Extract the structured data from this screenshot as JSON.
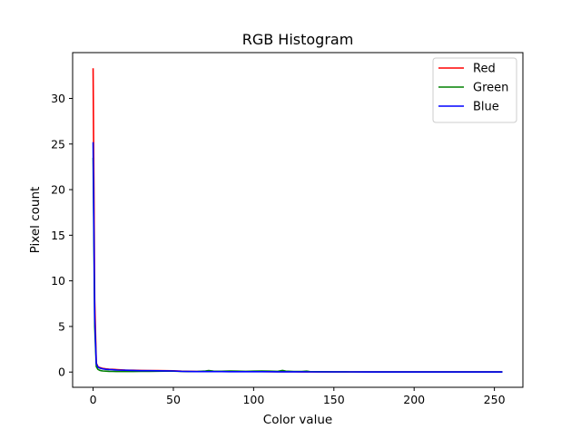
{
  "chart_data": {
    "type": "line",
    "title": "RGB Histogram",
    "xlabel": "Color value",
    "ylabel": "Pixel count",
    "xlim": [
      -12.75,
      267.75
    ],
    "ylim": [
      -1.67,
      35.02
    ],
    "xticks": [
      0,
      50,
      100,
      150,
      200,
      250
    ],
    "yticks": [
      0,
      5,
      10,
      15,
      20,
      25,
      30
    ],
    "xtick_labels": [
      "0",
      "50",
      "100",
      "150",
      "200",
      "250"
    ],
    "ytick_labels": [
      "0",
      "5",
      "10",
      "15",
      "20",
      "25",
      "30"
    ],
    "grid": false,
    "legend_position": "top-right",
    "series": [
      {
        "name": "Red",
        "color": "#ff0000",
        "x": [
          0,
          1,
          2,
          3,
          4,
          5,
          6,
          8,
          10,
          12,
          15,
          20,
          25,
          30,
          35,
          40,
          45,
          50,
          55,
          60,
          65,
          70,
          75,
          80,
          85,
          90,
          95,
          100,
          105,
          110,
          115,
          120,
          125,
          130,
          135,
          140,
          150,
          160,
          170,
          180,
          190,
          200,
          210,
          220,
          230,
          240,
          250,
          255
        ],
        "values": [
          33.3,
          8.0,
          1.0,
          0.6,
          0.5,
          0.45,
          0.4,
          0.35,
          0.32,
          0.3,
          0.27,
          0.22,
          0.2,
          0.18,
          0.17,
          0.16,
          0.15,
          0.14,
          0.1,
          0.08,
          0.07,
          0.06,
          0.07,
          0.06,
          0.06,
          0.05,
          0.05,
          0.05,
          0.05,
          0.04,
          0.04,
          0.04,
          0.04,
          0.03,
          0.03,
          0.03,
          0.02,
          0.02,
          0.02,
          0.01,
          0.01,
          0.01,
          0.01,
          0.01,
          0.01,
          0.01,
          0.01,
          0.01
        ]
      },
      {
        "name": "Green",
        "color": "#008000",
        "x": [
          0,
          1,
          2,
          3,
          4,
          5,
          6,
          8,
          10,
          12,
          15,
          20,
          25,
          30,
          35,
          40,
          45,
          50,
          55,
          60,
          65,
          70,
          72,
          75,
          80,
          85,
          90,
          95,
          100,
          105,
          110,
          115,
          118,
          120,
          125,
          130,
          133,
          135,
          140,
          150,
          160,
          170,
          180,
          190,
          200,
          210,
          220,
          230,
          240,
          250,
          255
        ],
        "values": [
          23.5,
          5.0,
          0.6,
          0.3,
          0.2,
          0.15,
          0.12,
          0.1,
          0.08,
          0.07,
          0.06,
          0.06,
          0.06,
          0.07,
          0.08,
          0.09,
          0.1,
          0.1,
          0.07,
          0.05,
          0.06,
          0.12,
          0.16,
          0.1,
          0.09,
          0.12,
          0.1,
          0.08,
          0.1,
          0.12,
          0.1,
          0.08,
          0.18,
          0.1,
          0.06,
          0.07,
          0.1,
          0.05,
          0.04,
          0.03,
          0.02,
          0.02,
          0.01,
          0.01,
          0.01,
          0.01,
          0.01,
          0.01,
          0.01,
          0.01,
          0.01
        ]
      },
      {
        "name": "Blue",
        "color": "#0000ff",
        "x": [
          0,
          1,
          2,
          3,
          4,
          5,
          6,
          8,
          10,
          12,
          15,
          20,
          25,
          30,
          35,
          40,
          45,
          50,
          55,
          60,
          65,
          70,
          75,
          80,
          85,
          90,
          95,
          100,
          105,
          110,
          115,
          120,
          125,
          130,
          135,
          140,
          150,
          160,
          170,
          180,
          190,
          200,
          210,
          220,
          230,
          240,
          250,
          255
        ],
        "values": [
          25.2,
          6.0,
          0.9,
          0.55,
          0.45,
          0.4,
          0.35,
          0.3,
          0.28,
          0.26,
          0.22,
          0.2,
          0.18,
          0.15,
          0.15,
          0.14,
          0.13,
          0.12,
          0.08,
          0.06,
          0.05,
          0.05,
          0.05,
          0.05,
          0.04,
          0.04,
          0.04,
          0.04,
          0.04,
          0.04,
          0.03,
          0.03,
          0.03,
          0.03,
          0.02,
          0.02,
          0.02,
          0.02,
          0.01,
          0.01,
          0.01,
          0.01,
          0.01,
          0.01,
          0.01,
          0.01,
          0.01,
          0.01
        ]
      }
    ]
  }
}
